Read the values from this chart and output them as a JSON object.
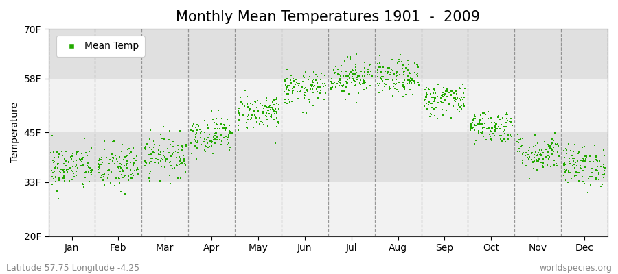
{
  "title": "Monthly Mean Temperatures 1901  -  2009",
  "ylabel": "Temperature",
  "xlabel_labels": [
    "Jan",
    "Feb",
    "Mar",
    "Apr",
    "May",
    "Jun",
    "Jul",
    "Aug",
    "Sep",
    "Oct",
    "Nov",
    "Dec"
  ],
  "ytick_labels": [
    "20F",
    "33F",
    "45F",
    "58F",
    "70F"
  ],
  "ytick_values": [
    20,
    33,
    45,
    58,
    70
  ],
  "ymin": 20,
  "ymax": 70,
  "dot_color": "#22aa00",
  "background_color": "#ffffff",
  "plot_bg_color": "#ffffff",
  "band_color_1": "#f2f2f2",
  "band_color_2": "#e0e0e0",
  "legend_label": "Mean Temp",
  "footer_left": "Latitude 57.75 Longitude -4.25",
  "footer_right": "worldspecies.org",
  "title_fontsize": 15,
  "axis_fontsize": 10,
  "tick_fontsize": 10,
  "footer_fontsize": 9,
  "monthly_means_F": [
    36.5,
    36.5,
    39.5,
    44.5,
    50.0,
    55.5,
    58.5,
    58.0,
    53.0,
    46.5,
    40.0,
    37.0
  ],
  "monthly_stds_F": [
    2.8,
    3.0,
    2.5,
    2.2,
    2.2,
    2.0,
    2.2,
    2.2,
    2.0,
    2.0,
    2.2,
    2.5
  ],
  "n_years": 109,
  "seed": 42
}
